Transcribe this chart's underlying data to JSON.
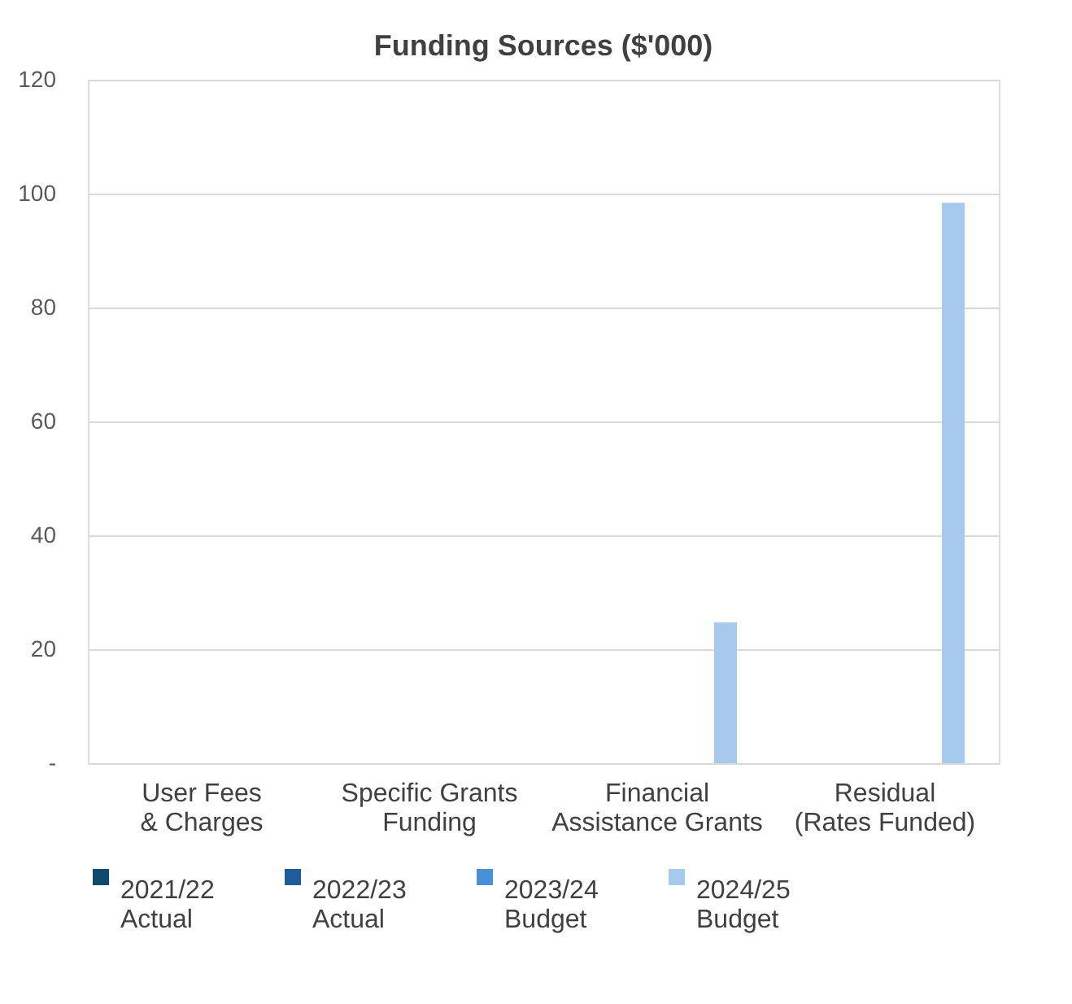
{
  "chart_data": {
    "type": "bar",
    "title": "Funding Sources ($'000)",
    "categories": [
      "User Fees\n& Charges",
      "Specific Grants\nFunding",
      "Financial\nAssistance Grants",
      "Residual\n(Rates Funded)"
    ],
    "series": [
      {
        "name": "2021/22\nActual",
        "color": "#0f4a6e",
        "values": [
          0,
          0,
          0,
          0
        ]
      },
      {
        "name": "2022/23\nActual",
        "color": "#1f5c99",
        "values": [
          0,
          0,
          0,
          0
        ]
      },
      {
        "name": "2023/24\nBudget",
        "color": "#4a90d9",
        "values": [
          0,
          0,
          0,
          0
        ]
      },
      {
        "name": "2024/25\nBudget",
        "color": "#a6c9ec",
        "values": [
          0,
          0,
          24.7,
          98.4
        ]
      }
    ],
    "ylim": [
      0,
      120
    ],
    "yticks": [
      {
        "value": 0,
        "label": "-"
      },
      20,
      40,
      60,
      80,
      100,
      120
    ],
    "grid": "y",
    "legend": "bottom"
  }
}
